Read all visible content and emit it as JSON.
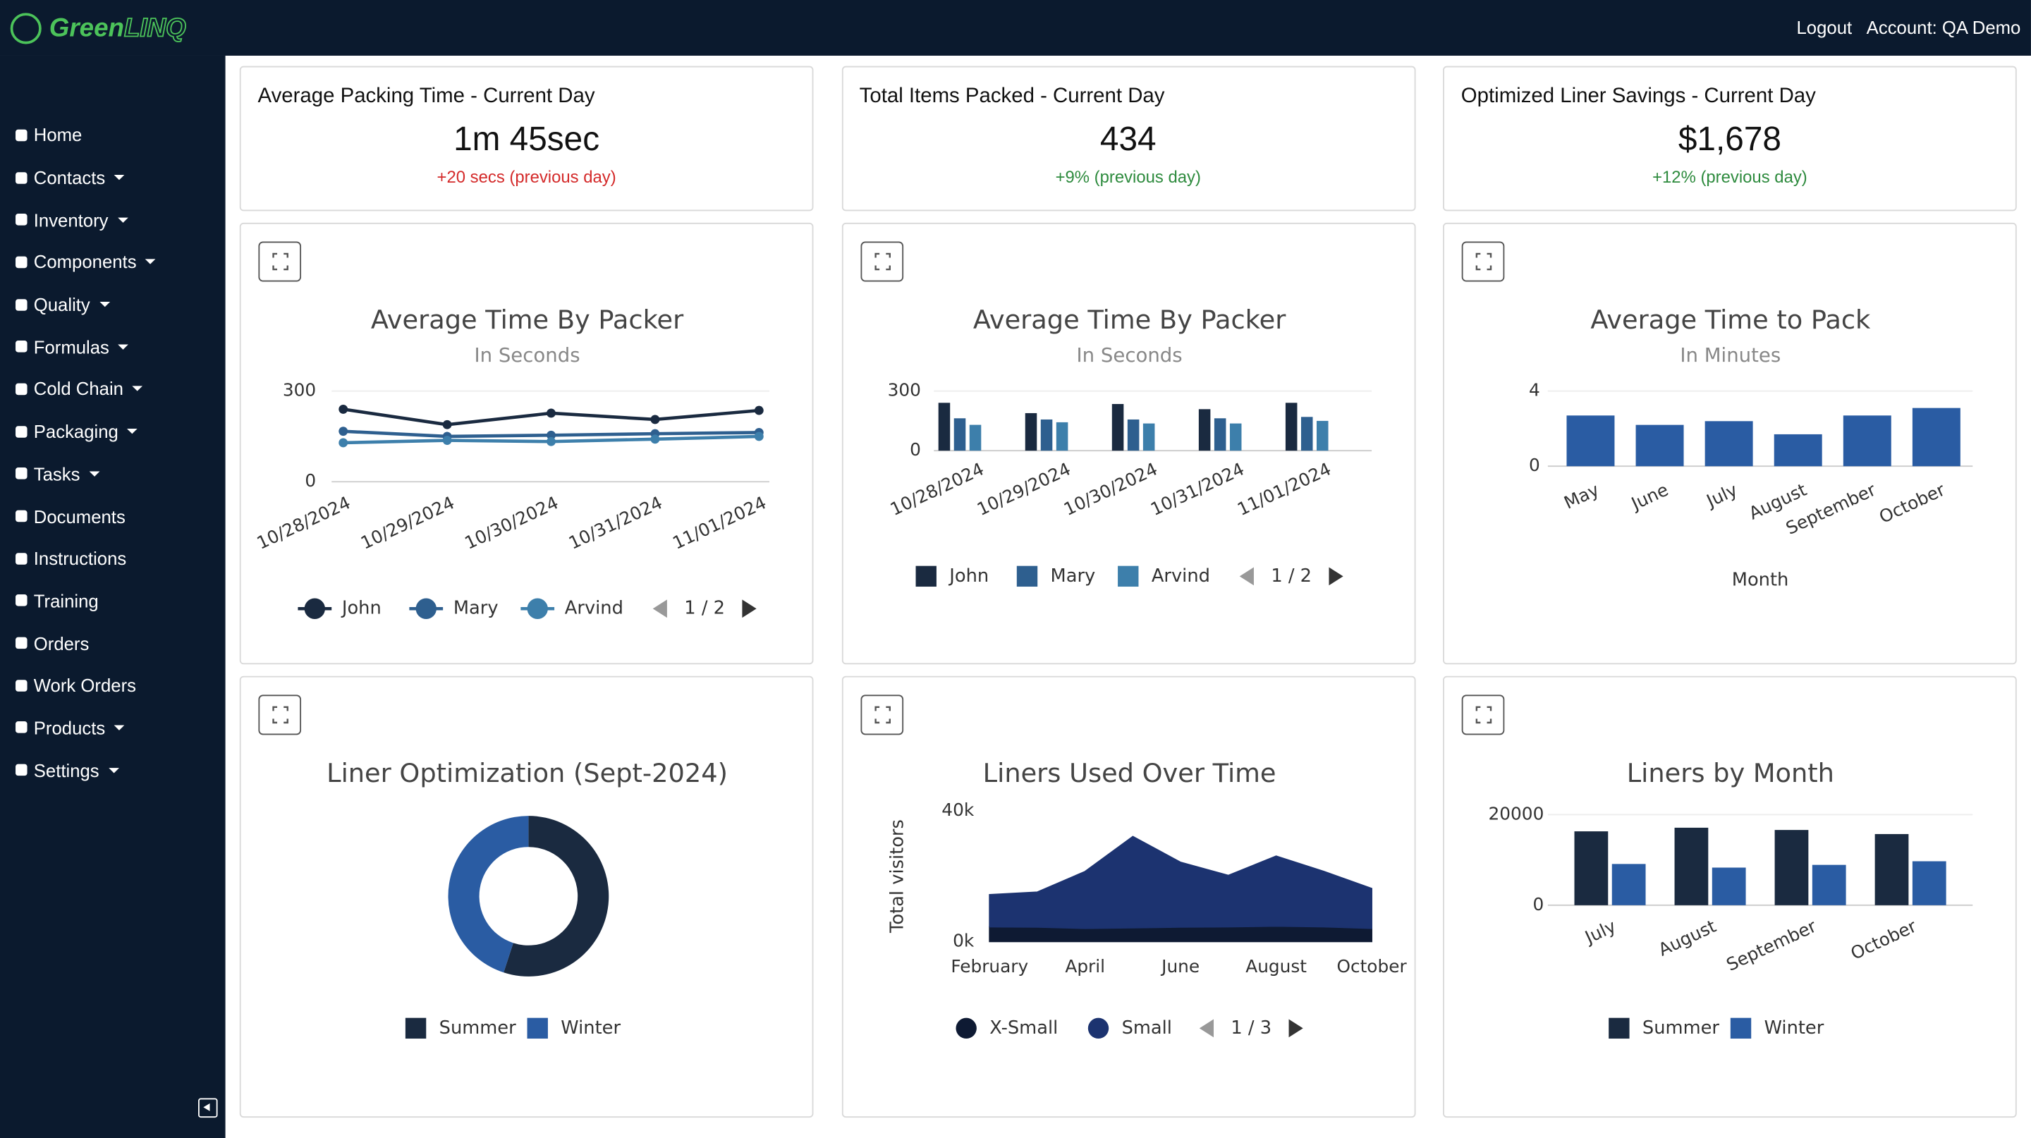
{
  "header": {
    "logo_primary": "Green",
    "logo_secondary": "LINQ",
    "logout": "Logout",
    "account": "Account: QA Demo"
  },
  "sidebar": {
    "items": [
      {
        "label": "Home",
        "dropdown": false
      },
      {
        "label": "Contacts",
        "dropdown": true
      },
      {
        "label": "Inventory",
        "dropdown": true
      },
      {
        "label": "Components",
        "dropdown": true
      },
      {
        "label": "Quality",
        "dropdown": true
      },
      {
        "label": "Formulas",
        "dropdown": true
      },
      {
        "label": "Cold Chain",
        "dropdown": true
      },
      {
        "label": "Packaging",
        "dropdown": true
      },
      {
        "label": "Tasks",
        "dropdown": true
      },
      {
        "label": "Documents",
        "dropdown": false
      },
      {
        "label": "Instructions",
        "dropdown": false
      },
      {
        "label": "Training",
        "dropdown": false
      },
      {
        "label": "Orders",
        "dropdown": false
      },
      {
        "label": "Work Orders",
        "dropdown": false
      },
      {
        "label": "Products",
        "dropdown": true
      },
      {
        "label": "Settings",
        "dropdown": true
      }
    ]
  },
  "kpis": [
    {
      "title": "Average Packing Time - Current Day",
      "value": "1m 45sec",
      "change": "+20 secs (previous day)",
      "change_color": "#d42a2a"
    },
    {
      "title": "Total Items Packed - Current Day",
      "value": "434",
      "change": "+9% (previous day)",
      "change_color": "#2e8b3e"
    },
    {
      "title": "Optimized Liner Savings - Current Day",
      "value": "$1,678",
      "change": "+12% (previous day)",
      "change_color": "#2e8b3e"
    }
  ],
  "chart_data": [
    {
      "type": "line",
      "title": "Average Time By Packer",
      "subtitle": "In Seconds",
      "categories": [
        "10/28/2024",
        "10/29/2024",
        "10/30/2024",
        "10/31/2024",
        "11/01/2024"
      ],
      "series": [
        {
          "name": "John",
          "color": "#1a2a40",
          "values": [
            240,
            189,
            227,
            206,
            236
          ]
        },
        {
          "name": "Mary",
          "color": "#2e5f8f",
          "values": [
            167,
            150,
            154,
            159,
            163
          ]
        },
        {
          "name": "Arvind",
          "color": "#3d7fab",
          "values": [
            129,
            137,
            133,
            141,
            150
          ]
        }
      ],
      "ylim": [
        0,
        300
      ],
      "yticks": [
        0,
        300
      ],
      "grid": true,
      "legend_pager": "1 / 2"
    },
    {
      "type": "bar",
      "title": "Average Time By Packer",
      "subtitle": "In Seconds",
      "categories": [
        "10/28/2024",
        "10/29/2024",
        "10/30/2024",
        "10/31/2024",
        "11/01/2024"
      ],
      "series": [
        {
          "name": "John",
          "color": "#1a2a40",
          "values": [
            241,
            189,
            235,
            209,
            241
          ]
        },
        {
          "name": "Mary",
          "color": "#2e5f8f",
          "values": [
            163,
            157,
            157,
            163,
            170
          ]
        },
        {
          "name": "Arvind",
          "color": "#3d7fab",
          "values": [
            130,
            143,
            137,
            137,
            150
          ]
        }
      ],
      "ylim": [
        0,
        300
      ],
      "yticks": [
        0,
        300
      ],
      "grid": true,
      "legend_pager": "1 / 2"
    },
    {
      "type": "bar",
      "title": "Average Time to Pack",
      "subtitle": "In Minutes",
      "x_label": "Month",
      "categories": [
        "May",
        "June",
        "July",
        "August",
        "September",
        "October"
      ],
      "values": [
        2.7,
        2.2,
        2.4,
        1.7,
        2.7,
        3.1
      ],
      "color": "#2a5ca3",
      "ylim": [
        0,
        4
      ],
      "yticks": [
        0,
        4
      ],
      "grid": true
    },
    {
      "type": "pie",
      "title": "Liner Optimization (Sept-2024)",
      "categories": [
        "Summer",
        "Winter"
      ],
      "values": [
        55,
        45
      ],
      "colors": [
        "#1a2a40",
        "#2a5ca3"
      ]
    },
    {
      "type": "area",
      "title": "Liners Used Over Time",
      "y_label": "Total visitors",
      "stacked": true,
      "categories": [
        "February",
        null,
        "April",
        null,
        "June",
        null,
        "August",
        null,
        "October"
      ],
      "series": [
        {
          "name": "X-Small",
          "color": "#0e1a33",
          "values": [
            4500,
            4400,
            4000,
            4200,
            4400,
            4500,
            4700,
            4500,
            4000
          ]
        },
        {
          "name": "Small",
          "color": "#1c3370",
          "values": [
            9800,
            10700,
            17400,
            27900,
            19800,
            15700,
            21400,
            16900,
            12200
          ]
        }
      ],
      "ylim": [
        0,
        40000
      ],
      "yticks": [
        {
          "value": 0,
          "label": "0k"
        },
        {
          "value": 40000,
          "label": "40k"
        }
      ],
      "grid": false,
      "legend_pager": "1 / 3"
    },
    {
      "type": "bar",
      "title": "Liners by Month",
      "categories": [
        "July",
        "August",
        "September",
        "October"
      ],
      "series": [
        {
          "name": "Summer",
          "color": "#1a2a40",
          "values": [
            16300,
            17100,
            16600,
            15700
          ]
        },
        {
          "name": "Winter",
          "color": "#2a5ca3",
          "values": [
            9100,
            8300,
            8900,
            9700
          ]
        }
      ],
      "ylim": [
        0,
        20000
      ],
      "yticks": [
        0,
        20000
      ],
      "grid": true
    }
  ]
}
